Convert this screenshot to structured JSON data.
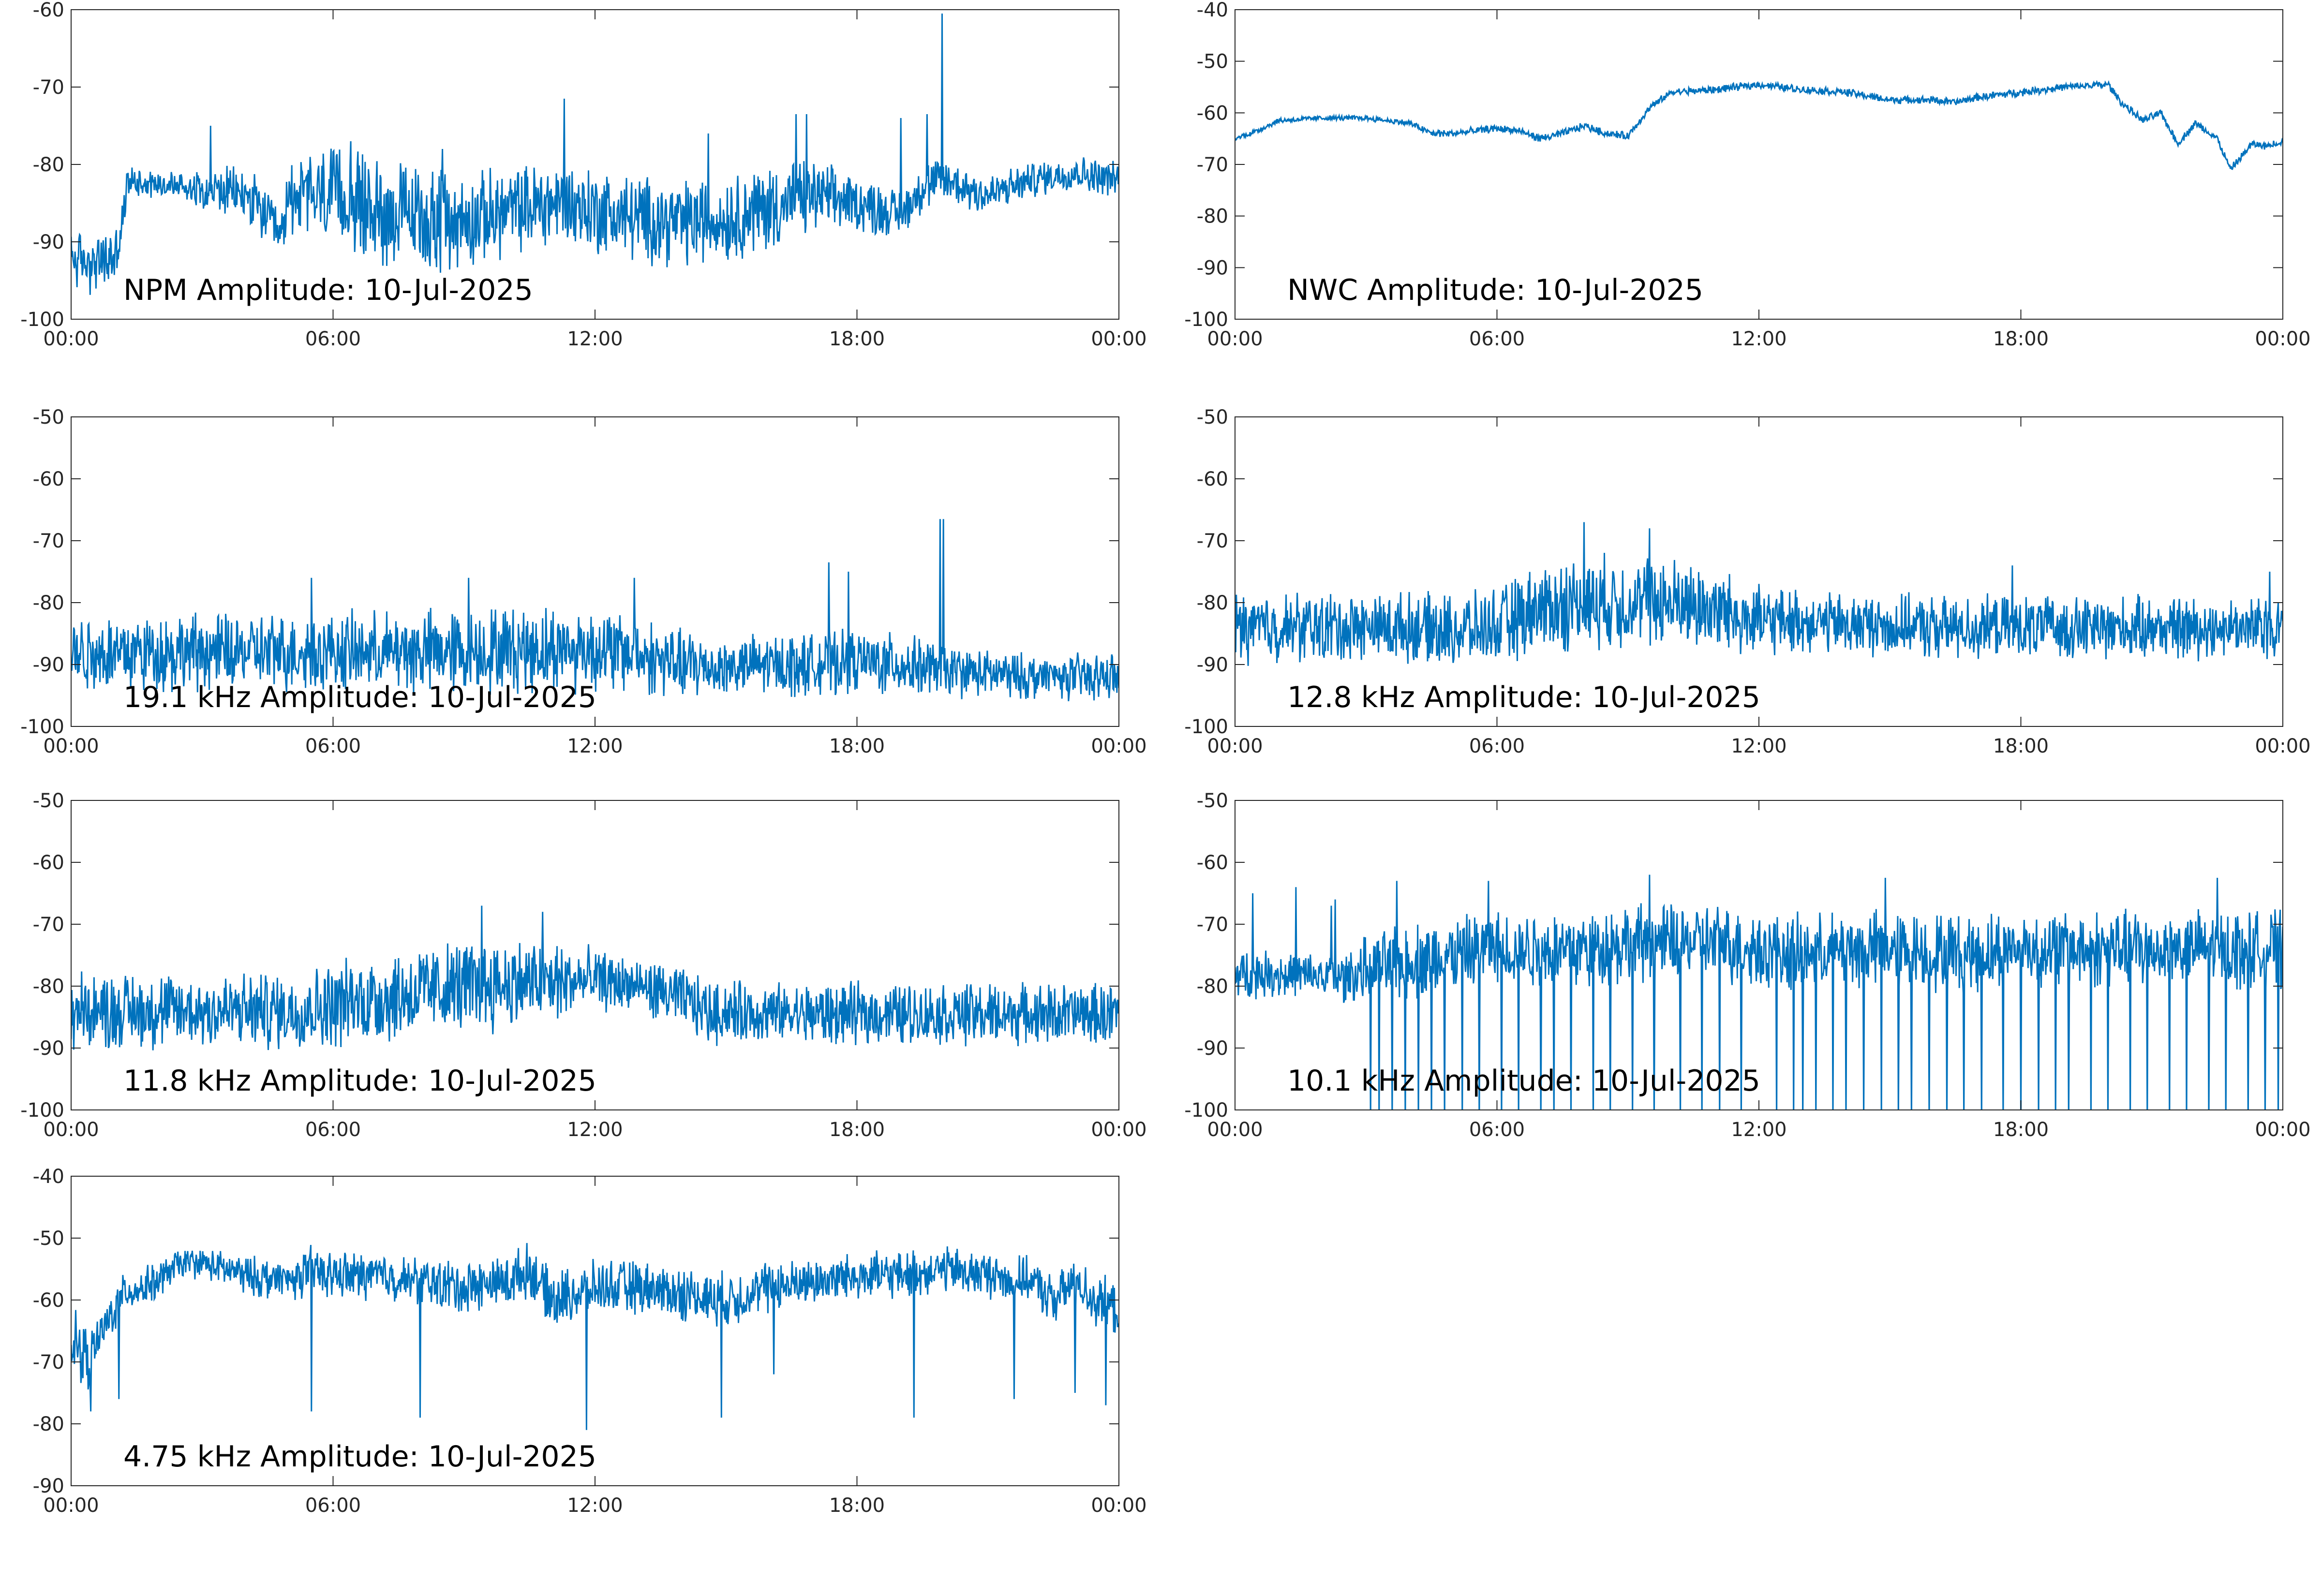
{
  "figure": {
    "line_color": "#0072BD",
    "axes_color": "#262626",
    "background": "#ffffff"
  },
  "chart_data": [
    {
      "type": "line",
      "title": "NPM Amplitude: 10-Jul-2025",
      "xlabel": "",
      "ylabel": "",
      "xticks": [
        "00:00",
        "06:00",
        "12:00",
        "18:00",
        "00:00"
      ],
      "xlim_hours": [
        0,
        24
      ],
      "ylim": [
        -100,
        -60
      ],
      "yticks": [
        -100,
        -90,
        -80,
        -70,
        -60
      ],
      "grid": false,
      "series": [
        {
          "x_hours": [
            0,
            0.5,
            1.0,
            1.15,
            1.3,
            2,
            3,
            4,
            4.5,
            4.8,
            5,
            6,
            7,
            8,
            9,
            10,
            11,
            11.3,
            12,
            13,
            14,
            15,
            16,
            16.5,
            17,
            18,
            19,
            19.5,
            20,
            20.5,
            21,
            22,
            23,
            24
          ],
          "y": [
            -92,
            -93,
            -92,
            -89,
            -82,
            -82.5,
            -83,
            -84,
            -87,
            -90,
            -84,
            -84,
            -86,
            -87,
            -87.5,
            -86,
            -85,
            -85,
            -86,
            -87,
            -87.5,
            -87,
            -85.5,
            -85,
            -84,
            -85,
            -86.5,
            -83,
            -82,
            -83,
            -84,
            -82,
            -81,
            -82
          ],
          "spread": [
            3,
            3,
            3,
            3,
            1.5,
            1.5,
            2,
            3,
            3,
            3,
            4,
            5,
            5.5,
            5.5,
            5,
            4.5,
            4.5,
            4.5,
            4.5,
            4.5,
            4.5,
            4.5,
            4.5,
            4.5,
            3.5,
            3,
            2.5,
            2.5,
            2.5,
            2.5,
            2.2,
            1.8,
            1.8,
            1.8
          ],
          "spikes": [
            [
              3.2,
              -75
            ],
            [
              11.3,
              -71.5
            ],
            [
              16.6,
              -73.5
            ],
            [
              16.85,
              -73.5
            ],
            [
              19.0,
              -74
            ],
            [
              19.6,
              -73.5
            ],
            [
              19.95,
              -60.5
            ],
            [
              6.4,
              -77
            ],
            [
              8.5,
              -78
            ],
            [
              14.6,
              -76
            ]
          ]
        }
      ]
    },
    {
      "type": "line",
      "title": "NWC Amplitude: 10-Jul-2025",
      "xlabel": "",
      "ylabel": "",
      "xticks": [
        "00:00",
        "06:00",
        "12:00",
        "18:00",
        "00:00"
      ],
      "xlim_hours": [
        0,
        24
      ],
      "ylim": [
        -100,
        -40
      ],
      "yticks": [
        -100,
        -90,
        -80,
        -70,
        -60,
        -50,
        -40
      ],
      "grid": false,
      "series": [
        {
          "x_hours": [
            0,
            0.5,
            1,
            2,
            3,
            3.5,
            4,
            4.5,
            5,
            6,
            6.5,
            7,
            7.5,
            8,
            8.5,
            9,
            9.5,
            10,
            11,
            12,
            13,
            14,
            15,
            16,
            16.5,
            17,
            18,
            19,
            20,
            20.3,
            20.8,
            21.2,
            21.6,
            22,
            22.5,
            22.8,
            23.3,
            23.6,
            24
          ],
          "y": [
            -65,
            -63.5,
            -61.5,
            -61,
            -61,
            -61.5,
            -62,
            -64,
            -64,
            -63,
            -63.5,
            -65,
            -64,
            -62.5,
            -64,
            -64.5,
            -59,
            -56,
            -55.5,
            -54.5,
            -55.5,
            -56,
            -57.5,
            -57.5,
            -58,
            -57,
            -56,
            -55,
            -54.5,
            -58,
            -61.5,
            -60,
            -66,
            -62,
            -65,
            -71,
            -66,
            -66.5,
            -65.5
          ],
          "spread": [
            0.4,
            0.4,
            0.4,
            0.4,
            0.4,
            0.4,
            0.5,
            0.6,
            0.6,
            0.6,
            0.6,
            0.6,
            0.6,
            0.6,
            0.6,
            0.6,
            0.6,
            0.6,
            0.6,
            0.6,
            0.6,
            0.6,
            0.6,
            0.6,
            0.6,
            0.6,
            0.6,
            0.6,
            0.6,
            0.6,
            0.6,
            0.6,
            0.6,
            0.6,
            0.6,
            0.6,
            0.6,
            0.6,
            0.6
          ],
          "spikes": []
        }
      ]
    },
    {
      "type": "line",
      "title": "19.1 kHz Amplitude: 10-Jul-2025",
      "xlabel": "",
      "ylabel": "",
      "xticks": [
        "00:00",
        "06:00",
        "12:00",
        "18:00",
        "00:00"
      ],
      "xlim_hours": [
        0,
        24
      ],
      "ylim": [
        -100,
        -50
      ],
      "yticks": [
        -100,
        -90,
        -80,
        -70,
        -60,
        -50
      ],
      "grid": false,
      "series": [
        {
          "x_hours": [
            0,
            2,
            4,
            6,
            8,
            10,
            12,
            13,
            14,
            15,
            16,
            17,
            18,
            19,
            20,
            21,
            22,
            23,
            24
          ],
          "y": [
            -88,
            -88,
            -88,
            -88,
            -88,
            -87.5,
            -87.5,
            -88.5,
            -90,
            -90.5,
            -90,
            -90,
            -89.5,
            -90,
            -91,
            -91.5,
            -92,
            -92,
            -92
          ],
          "spread": [
            5,
            5,
            5,
            5,
            5.5,
            5.5,
            5.5,
            5,
            4.5,
            4,
            4,
            4,
            4,
            4,
            3.5,
            3,
            3,
            3,
            3
          ],
          "spikes": [
            [
              17.35,
              -73.5
            ],
            [
              17.8,
              -75
            ],
            [
              19.9,
              -66.5
            ],
            [
              19.98,
              -66.5
            ],
            [
              5.5,
              -76
            ],
            [
              9.1,
              -76
            ],
            [
              12.9,
              -76
            ]
          ]
        }
      ]
    },
    {
      "type": "line",
      "title": "12.8 kHz Amplitude: 10-Jul-2025",
      "xlabel": "",
      "ylabel": "",
      "xticks": [
        "00:00",
        "06:00",
        "12:00",
        "18:00",
        "00:00"
      ],
      "xlim_hours": [
        0,
        24
      ],
      "ylim": [
        -100,
        -50
      ],
      "yticks": [
        -100,
        -90,
        -80,
        -70,
        -60,
        -50
      ],
      "grid": false,
      "series": [
        {
          "x_hours": [
            0,
            2,
            4,
            5,
            6,
            7,
            8,
            9,
            10,
            11,
            12,
            13,
            14,
            16,
            18,
            20,
            22,
            24
          ],
          "y": [
            -84,
            -84,
            -84,
            -84.5,
            -84,
            -81,
            -80,
            -80,
            -80,
            -81,
            -83,
            -83,
            -83.5,
            -84,
            -84,
            -84,
            -84,
            -84
          ],
          "spread": [
            4.5,
            4.5,
            4.5,
            4.5,
            5,
            6,
            6,
            6,
            6,
            5.5,
            4.5,
            4,
            4,
            4,
            4,
            4,
            4,
            4
          ],
          "spikes": [
            [
              8.0,
              -67
            ],
            [
              9.5,
              -68
            ],
            [
              17.8,
              -74
            ],
            [
              23.7,
              -75
            ]
          ]
        }
      ]
    },
    {
      "type": "line",
      "title": "11.8 kHz Amplitude: 10-Jul-2025",
      "xlabel": "",
      "ylabel": "",
      "xticks": [
        "00:00",
        "06:00",
        "12:00",
        "18:00",
        "00:00"
      ],
      "xlim_hours": [
        0,
        24
      ],
      "ylim": [
        -100,
        -50
      ],
      "yticks": [
        -100,
        -90,
        -80,
        -70,
        -60,
        -50
      ],
      "grid": false,
      "series": [
        {
          "x_hours": [
            0,
            2,
            4,
            5,
            6,
            7,
            8,
            9,
            10,
            11,
            12,
            13,
            14,
            14.7,
            15,
            16,
            18,
            20,
            22,
            24
          ],
          "y": [
            -84,
            -84,
            -84,
            -84,
            -83,
            -82,
            -81,
            -80,
            -79.5,
            -79.5,
            -79,
            -80,
            -82,
            -84.5,
            -84,
            -84.5,
            -84.5,
            -84.5,
            -84.5,
            -84.5
          ],
          "spread": [
            5,
            5,
            5,
            5,
            5.5,
            6,
            6,
            6,
            6,
            5.5,
            4,
            3.5,
            4,
            4,
            4,
            4,
            4,
            4,
            4,
            4
          ],
          "spikes": [
            [
              9.4,
              -67
            ],
            [
              10.8,
              -68
            ]
          ]
        }
      ]
    },
    {
      "type": "line",
      "title": "10.1 kHz Amplitude: 10-Jul-2025",
      "xlabel": "",
      "ylabel": "",
      "xticks": [
        "00:00",
        "06:00",
        "12:00",
        "18:00",
        "00:00"
      ],
      "xlim_hours": [
        0,
        24
      ],
      "ylim": [
        -100,
        -50
      ],
      "yticks": [
        -100,
        -90,
        -80,
        -70,
        -60,
        -50
      ],
      "grid": false,
      "series": [
        {
          "x_hours": [
            0,
            1,
            2,
            2.5,
            3,
            4,
            5,
            6,
            7,
            8,
            9,
            10,
            11,
            12,
            13,
            14,
            15,
            16,
            17,
            18,
            19,
            20,
            21,
            22,
            23,
            24
          ],
          "y": [
            -78,
            -78,
            -78.5,
            -79,
            -77,
            -76,
            -75,
            -74,
            -74,
            -74,
            -73,
            -73,
            -73,
            -74,
            -75,
            -74,
            -74,
            -74.5,
            -74.5,
            -74,
            -74,
            -74,
            -74,
            -74,
            -74,
            -74
          ],
          "spread": [
            3,
            3,
            3,
            3.5,
            4,
            5,
            5,
            5,
            5,
            5,
            5,
            5,
            5,
            5,
            5,
            5,
            5,
            5,
            5,
            5,
            5,
            5,
            5,
            5,
            5,
            5
          ],
          "spikes": [
            [
              0.4,
              -65
            ],
            [
              1.4,
              -64
            ],
            [
              2.2,
              -67
            ],
            [
              2.3,
              -66
            ],
            [
              3.7,
              -63
            ],
            [
              5.8,
              -63
            ],
            [
              9.5,
              -62
            ],
            [
              14.9,
              -62.5
            ],
            [
              22.5,
              -62.5
            ],
            [
              23.9,
              -62.5
            ]
          ],
          "dropouts": [
            3.1,
            3.3,
            3.6,
            3.9,
            4.2,
            4.5,
            4.8,
            5.2,
            5.6,
            6.1,
            6.5,
            7.0,
            7.3,
            7.7,
            8.2,
            8.6,
            9.1,
            9.6,
            10.2,
            10.7,
            11.1,
            11.6,
            12.4,
            12.8,
            13.0,
            13.3,
            13.7,
            14.0,
            14.4,
            14.8,
            15.2,
            15.5,
            15.9,
            16.3,
            16.7,
            17.1,
            17.6,
            18.0,
            18.4,
            18.8,
            19.1,
            19.6,
            20.0,
            20.5,
            20.9,
            21.4,
            21.8,
            22.3,
            22.7,
            23.2,
            23.6,
            23.9
          ]
        }
      ]
    },
    {
      "type": "line",
      "title": "4.75 kHz Amplitude: 10-Jul-2025",
      "xlabel": "",
      "ylabel": "",
      "xticks": [
        "00:00",
        "06:00",
        "12:00",
        "18:00",
        "00:00"
      ],
      "xlim_hours": [
        0,
        24
      ],
      "ylim": [
        -90,
        -40
      ],
      "yticks": [
        -90,
        -80,
        -70,
        -60,
        -50,
        -40
      ],
      "grid": false,
      "series": [
        {
          "x_hours": [
            0,
            0.4,
            0.8,
            1.2,
            2,
            2.5,
            3,
            4,
            5,
            5.5,
            6,
            7,
            8,
            9,
            10,
            10.5,
            11,
            12,
            13,
            14,
            15,
            16,
            17,
            18,
            19,
            20,
            21,
            22,
            22.5,
            23,
            23.5,
            24
          ],
          "y": [
            -66,
            -70,
            -64,
            -59,
            -57,
            -54,
            -54,
            -56,
            -57,
            -55,
            -56,
            -56,
            -57,
            -58,
            -57,
            -55,
            -60,
            -58,
            -58,
            -59,
            -60,
            -58,
            -57,
            -56,
            -56,
            -55,
            -56,
            -57,
            -60,
            -57,
            -60,
            -62
          ],
          "spread": [
            4,
            4,
            3,
            2.5,
            2.5,
            2,
            2,
            2.5,
            3,
            3,
            3,
            3,
            3,
            3.5,
            3.5,
            3.5,
            3.5,
            3.5,
            3.5,
            3.5,
            3.5,
            3.5,
            3,
            3,
            3,
            3,
            3,
            3,
            3,
            3,
            3.5,
            3.5
          ],
          "spikes": [
            [
              0.45,
              -78
            ],
            [
              1.1,
              -76
            ],
            [
              5.5,
              -78
            ],
            [
              8.0,
              -79
            ],
            [
              11.8,
              -81
            ],
            [
              14.9,
              -79
            ],
            [
              16.1,
              -72
            ],
            [
              19.3,
              -79
            ],
            [
              21.6,
              -76
            ],
            [
              23.0,
              -75
            ],
            [
              23.7,
              -77
            ]
          ]
        }
      ]
    }
  ]
}
